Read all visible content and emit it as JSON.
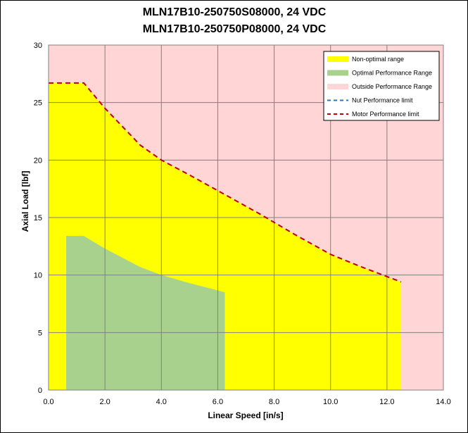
{
  "chart_data": {
    "type": "area",
    "title_lines": [
      "MLN17B10-250750S08000, 24 VDC",
      "MLN17B10-250750P08000, 24 VDC"
    ],
    "xlabel": "Linear Speed [in/s]",
    "ylabel": "Axial Load [lbf]",
    "xlim": [
      0,
      14
    ],
    "ylim": [
      0,
      30
    ],
    "x_ticks": [
      "0.0",
      "2.0",
      "4.0",
      "6.0",
      "8.0",
      "10.0",
      "12.0",
      "14.0"
    ],
    "y_ticks": [
      "0",
      "5",
      "10",
      "15",
      "20",
      "25",
      "30"
    ],
    "grid": true,
    "legend_position": "top-right",
    "legend": [
      {
        "label": "Non-optimal range",
        "kind": "fill",
        "color": "#ffff00"
      },
      {
        "label": "Optimal Performance Range",
        "kind": "fill",
        "color": "#a9d18e"
      },
      {
        "label": "Outside Performance Range",
        "kind": "fill",
        "color": "#ffd5d5"
      },
      {
        "label": "Nut Performance limit",
        "kind": "dash",
        "color": "#2e75b6"
      },
      {
        "label": "Motor Performance limit",
        "kind": "dash",
        "color": "#c00000"
      }
    ],
    "colors": {
      "outside": "#ffd5d5",
      "non_optimal": "#ffff00",
      "optimal": "#a9d18e",
      "motor_limit": "#c00000",
      "nut_limit": "#2e75b6",
      "grid": "#808080"
    },
    "series": [
      {
        "name": "Motor Performance limit",
        "x": [
          0.0,
          1.25,
          2.0,
          3.25,
          4.0,
          5.0,
          6.25,
          7.5,
          8.75,
          10.0,
          11.0,
          12.5
        ],
        "y": [
          26.7,
          26.7,
          24.5,
          21.3,
          20.0,
          18.7,
          17.0,
          15.3,
          13.5,
          11.8,
          10.8,
          9.4
        ]
      },
      {
        "name": "Optimal Performance Range",
        "x": [
          0.625,
          1.25,
          2.0,
          3.25,
          4.0,
          5.0,
          6.25
        ],
        "y": [
          13.4,
          13.4,
          12.3,
          10.7,
          10.0,
          9.3,
          8.5
        ]
      }
    ]
  }
}
